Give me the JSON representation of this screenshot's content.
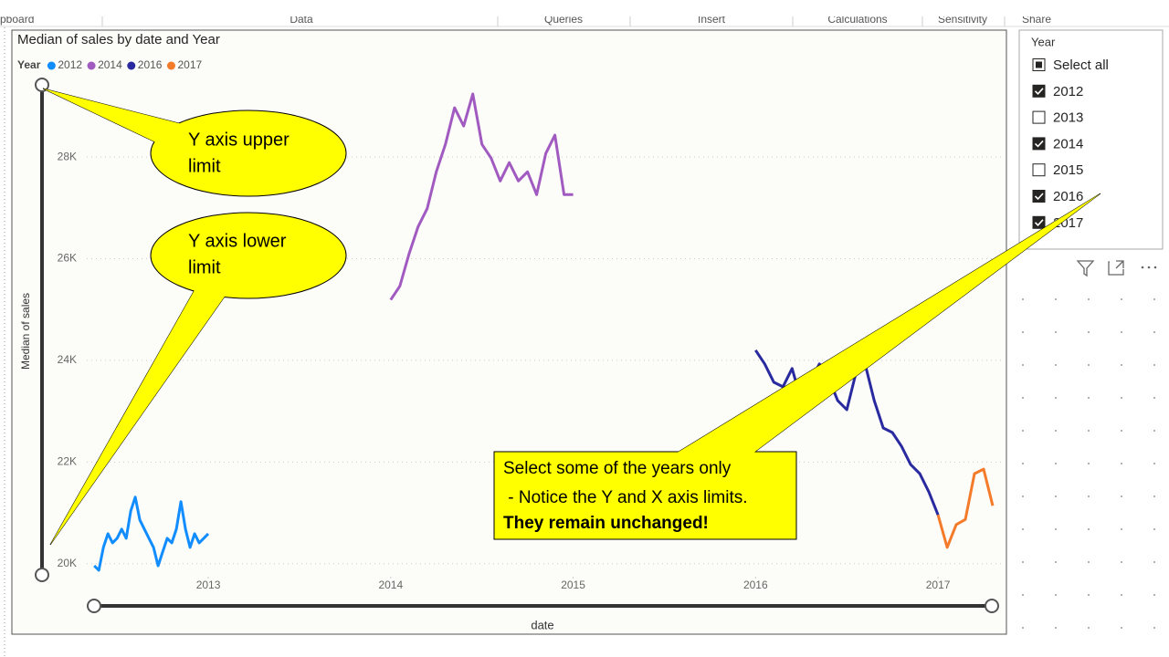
{
  "ribbon": [
    "pboard",
    "Data",
    "Queries",
    "Insert",
    "Calculations",
    "Sensitivity",
    "Share"
  ],
  "chart_data": {
    "type": "line",
    "title": "Median of sales by date and Year",
    "x_label": "date",
    "y_label": "Median of sales",
    "legend_title": "Year",
    "xlim": [
      2012.374,
      2017.3
    ],
    "xticks": [
      2013,
      2014,
      2015,
      2016,
      2017
    ],
    "ylim": [
      19780,
      29420
    ],
    "yticks": [
      {
        "value": 20000,
        "label": "20K"
      },
      {
        "value": 22000,
        "label": "22K"
      },
      {
        "value": 24000,
        "label": "24K"
      },
      {
        "value": 26000,
        "label": "26K"
      },
      {
        "value": 28000,
        "label": "28K"
      }
    ],
    "grid": true,
    "series": [
      {
        "name": "2012",
        "color": "#118dff",
        "x": [
          2012.375,
          2012.4,
          2012.425,
          2012.45,
          2012.475,
          2012.5,
          2012.525,
          2012.55,
          2012.575,
          2012.6,
          2012.625,
          2012.65,
          2012.675,
          2012.7,
          2012.725,
          2012.75,
          2012.775,
          2012.8,
          2012.825,
          2012.85,
          2012.875,
          2012.9,
          2012.925,
          2012.95,
          2012.975,
          2013.0
        ],
        "values": [
          19960,
          19870,
          20320,
          20590,
          20410,
          20500,
          20680,
          20500,
          21040,
          21310,
          20860,
          20680,
          20500,
          20320,
          19960,
          20230,
          20500,
          20410,
          20680,
          21220,
          20680,
          20320,
          20590,
          20410,
          20500,
          20590
        ]
      },
      {
        "name": "2014",
        "color": "#a05ac0",
        "x": [
          2014.0,
          2014.05,
          2014.1,
          2014.15,
          2014.2,
          2014.25,
          2014.3,
          2014.35,
          2014.4,
          2014.45,
          2014.5,
          2014.55,
          2014.6,
          2014.65,
          2014.7,
          2014.75,
          2014.8,
          2014.85,
          2014.9,
          2014.95,
          2015.0
        ],
        "values": [
          25190,
          25460,
          26090,
          26630,
          26990,
          27710,
          28250,
          28970,
          28610,
          29240,
          28250,
          27980,
          27530,
          27890,
          27530,
          27710,
          27260,
          28070,
          28430,
          27260,
          27260
        ]
      },
      {
        "name": "2016",
        "color": "#2a2aa0",
        "x": [
          2016.0,
          2016.05,
          2016.1,
          2016.15,
          2016.2,
          2016.25,
          2016.3,
          2016.35,
          2016.4,
          2016.45,
          2016.5,
          2016.55,
          2016.6,
          2016.65,
          2016.7,
          2016.75,
          2016.8,
          2016.85,
          2016.9,
          2016.95,
          2017.0
        ],
        "values": [
          24200,
          23930,
          23570,
          23480,
          23840,
          23210,
          23570,
          23930,
          23660,
          23210,
          23030,
          23750,
          23930,
          23210,
          22670,
          22580,
          22310,
          21950,
          21770,
          21410,
          20960
        ]
      },
      {
        "name": "2017",
        "color": "#f47b2a",
        "x": [
          2017.0,
          2017.05,
          2017.1,
          2017.15,
          2017.2,
          2017.25,
          2017.3
        ],
        "values": [
          20960,
          20320,
          20770,
          20870,
          21770,
          21860,
          21140
        ]
      }
    ]
  },
  "slicer": {
    "title": "Year",
    "items": [
      {
        "label": "Select all",
        "state": "partial"
      },
      {
        "label": "2012",
        "state": "checked"
      },
      {
        "label": "2013",
        "state": "unchecked"
      },
      {
        "label": "2014",
        "state": "checked"
      },
      {
        "label": "2015",
        "state": "unchecked"
      },
      {
        "label": "2016",
        "state": "checked"
      },
      {
        "label": "2017",
        "state": "checked"
      }
    ]
  },
  "callouts": {
    "upper": [
      "Y axis upper",
      "limit"
    ],
    "lower": [
      "Y axis lower",
      "limit"
    ],
    "note": [
      "Select some of the years only",
      " - Notice the Y and X axis limits.",
      "They remain unchanged!"
    ]
  }
}
